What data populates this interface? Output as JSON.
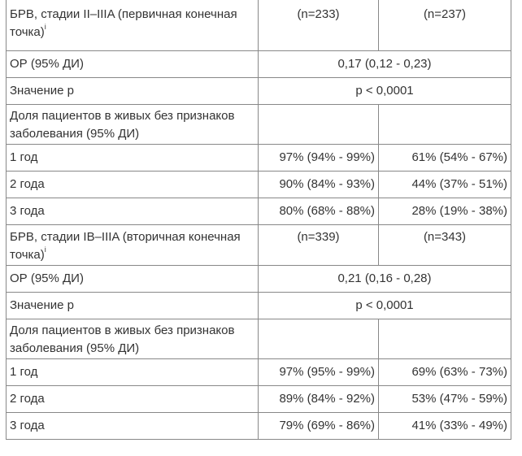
{
  "table": {
    "section1": {
      "label": "БРВ, стадии II–IIIA (первичная конечная точка)",
      "label_sup": "i",
      "n_a": "(n=233)",
      "n_b": "(n=237)",
      "hr_label": "ОР (95% ДИ)",
      "hr_value": "0,17 (0,12 - 0,23)",
      "p_label": "Значение р",
      "p_value": "p < 0,0001",
      "dfs_label": "Доля пациентов в живых без признаков заболевания (95% ДИ)",
      "rows": [
        {
          "label": "1 год",
          "a": "97% (94% - 99%)",
          "b": "61% (54% - 67%)"
        },
        {
          "label": "2 года",
          "a": "90% (84% - 93%)",
          "b": "44% (37% - 51%)"
        },
        {
          "label": "3 года",
          "a": "80% (68% - 88%)",
          "b": "28% (19% - 38%)"
        }
      ]
    },
    "section2": {
      "label": "БРВ, стадии IB–IIIA (вторичная конечная точка)",
      "label_sup": "i",
      "n_a": "(n=339)",
      "n_b": "(n=343)",
      "hr_label": "ОР (95% ДИ)",
      "hr_value": "0,21 (0,16 - 0,28)",
      "p_label": "Значение р",
      "p_value": "p < 0,0001",
      "dfs_label": "Доля пациентов в живых без признаков заболевания (95% ДИ)",
      "rows": [
        {
          "label": "1 год",
          "a": "97% (95% - 99%)",
          "b": "69% (63% - 73%)"
        },
        {
          "label": "2 года",
          "a": "89% (84% - 92%)",
          "b": "53% (47% - 59%)"
        },
        {
          "label": "3 года",
          "a": "79% (69% - 86%)",
          "b": "41% (33% - 49%)"
        }
      ]
    }
  }
}
